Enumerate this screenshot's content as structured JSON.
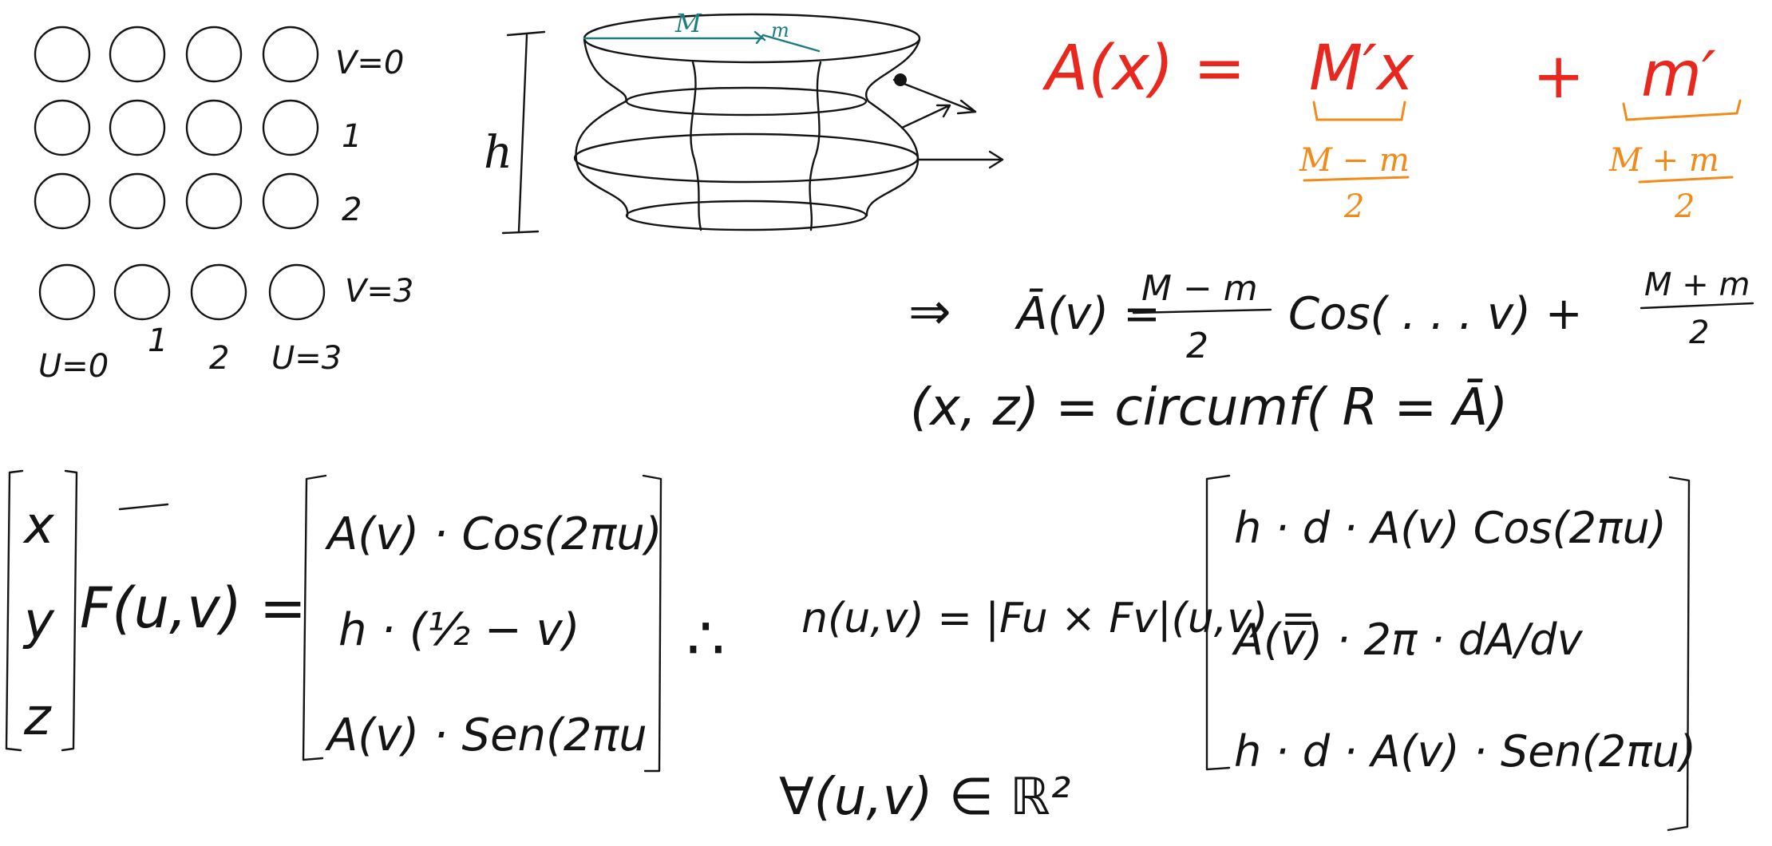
{
  "colors": {
    "ink": "#141414",
    "red": "#e8281e",
    "orange": "#f28a1a",
    "teal": "#1b7d7d"
  },
  "grid": {
    "v_labels": [
      "V=0",
      "1",
      "2",
      "V=3"
    ],
    "u_labels": [
      "U=0",
      "1",
      "2",
      "U=3"
    ]
  },
  "sketch": {
    "height_label": "h",
    "big_radius_label": "M",
    "small_radius_label": "m"
  },
  "formula_red": {
    "lhs": "A(x) =",
    "term1": "M′x",
    "plus": "+",
    "term2": "m′"
  },
  "formula_orange": {
    "num1": "M − m",
    "den1": "2",
    "num2": "M + m",
    "den2": "2"
  },
  "derivation": {
    "implies": "⇒",
    "abar": "Ā(v) =",
    "num": "M − m",
    "den": "2",
    "cos": "Cos( . . . v) +",
    "num2": "M + m",
    "den2": "2",
    "circ": "(x, z) = circumf( R = Ā)"
  },
  "vector_eq": {
    "col": [
      "x",
      "y",
      "z"
    ],
    "F": "F(u,v) =",
    "entries": [
      "A(v) · Cos(2πu)",
      "h · (½ − v)",
      "A(v) · Sen(2πu"
    ],
    "therefore": "∴",
    "normal": "n(u,v) = |Fu × Fv|(u,v) =",
    "result": [
      "h · d · A(v) Cos(2πu)",
      "A(v) · 2π · dA/dv",
      "h · d · A(v) · Sen(2πu)"
    ],
    "forall": "∀(u,v) ∈ ℝ²"
  }
}
